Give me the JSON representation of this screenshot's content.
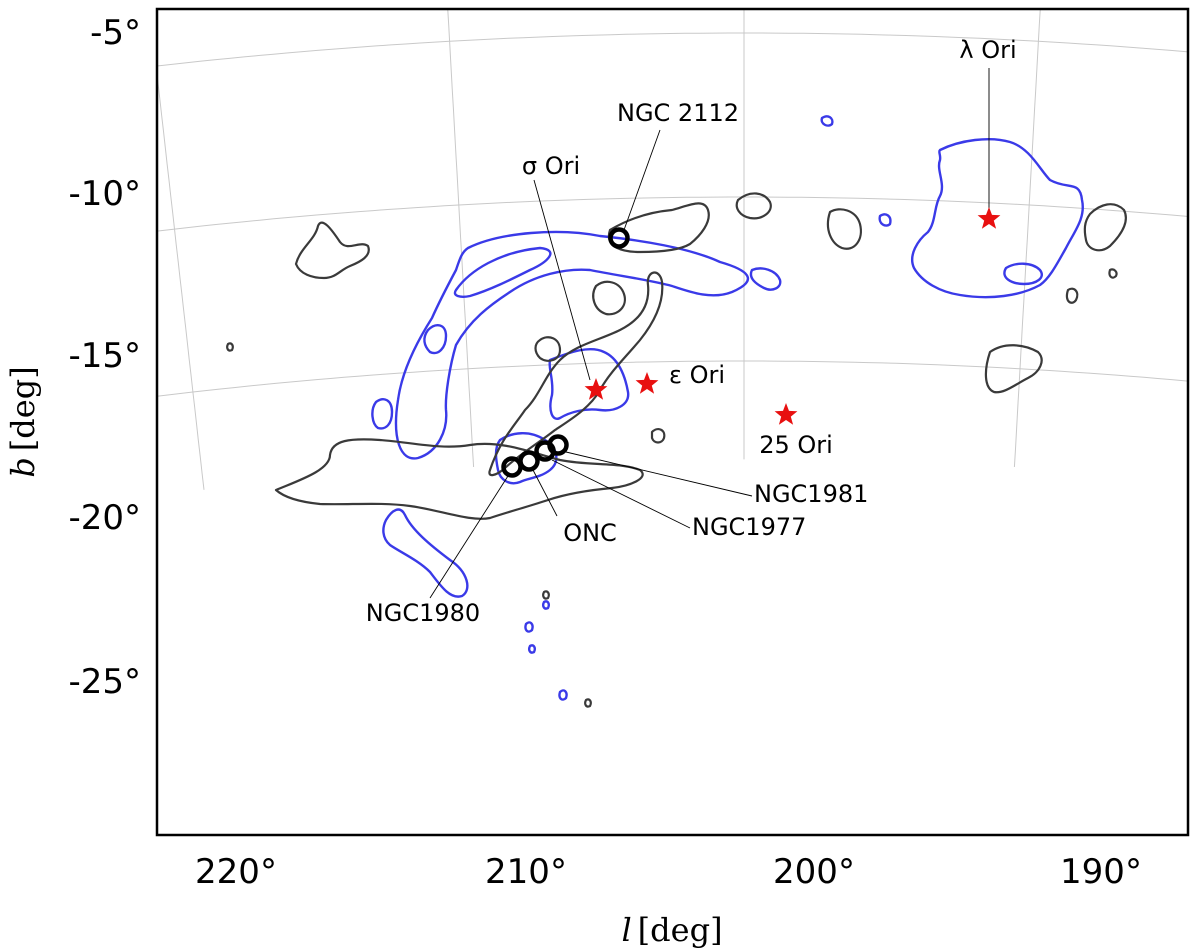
{
  "chart_data": {
    "type": "scatter",
    "title": "",
    "projection": "galactic sky map",
    "xlabel": "l [deg]",
    "ylabel": "b [deg]",
    "xlim": [
      222.7,
      187.0
    ],
    "ylim": [
      -29.3,
      -4.4
    ],
    "x_ticks": [
      {
        "value": 220,
        "label": "220°"
      },
      {
        "value": 210,
        "label": "210°"
      },
      {
        "value": 200,
        "label": "200°"
      },
      {
        "value": 190,
        "label": "190°"
      }
    ],
    "y_ticks": [
      {
        "value": -5,
        "label": "-5°"
      },
      {
        "value": -10,
        "label": "-10°"
      },
      {
        "value": -15,
        "label": "-15°"
      },
      {
        "value": -20,
        "label": "-20°"
      },
      {
        "value": -25,
        "label": "-25°"
      }
    ],
    "grid": true,
    "colors": {
      "blue_contour": "#3a3ae8",
      "gray_contour": "#3a3a3a",
      "star": "#e81010",
      "cluster": "#000000",
      "grid": "#c9c9c9"
    },
    "stars": [
      {
        "label": "λ Ori",
        "l": 195.1,
        "b": -12.0
      },
      {
        "label": "σ Ori",
        "l": 206.8,
        "b": -17.3
      },
      {
        "label": "ε Ori",
        "l": 205.2,
        "b": -17.2
      },
      {
        "label": "25 Ori",
        "l": 200.6,
        "b": -18.2
      }
    ],
    "clusters": [
      {
        "label": "NGC 2112",
        "l": 205.9,
        "b": -12.6
      },
      {
        "label": "NGC1981",
        "l": 208.2,
        "b": -19.0
      },
      {
        "label": "NGC1977",
        "l": 208.5,
        "b": -19.1
      },
      {
        "label": "ONC",
        "l": 209.0,
        "b": -19.4
      },
      {
        "label": "NGC1980",
        "l": 209.5,
        "b": -19.7
      }
    ]
  }
}
